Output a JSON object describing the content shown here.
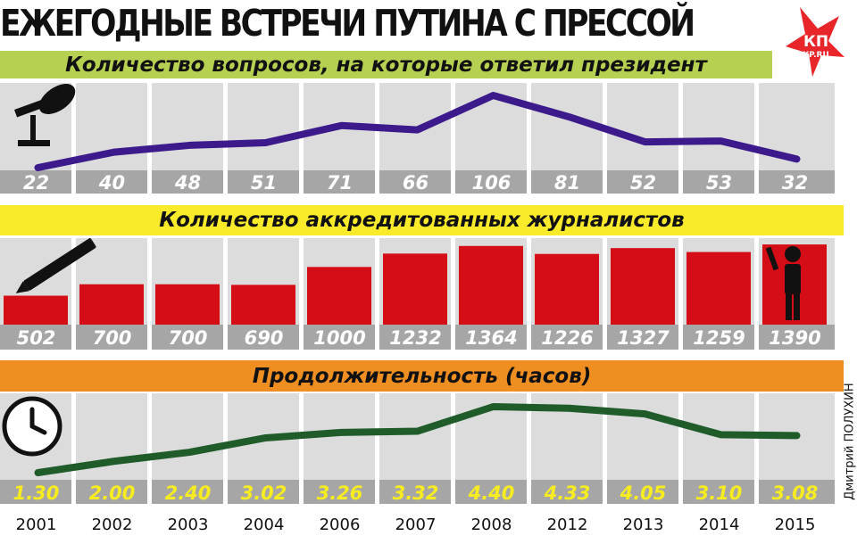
{
  "title": "ЕЖЕГОДНЫЕ ВСТРЕЧИ ПУТИНА С ПРЕССОЙ",
  "logo": {
    "main": "КП",
    "sub": "KP.RU",
    "color": "#e8262a"
  },
  "credit": "Дмитрий ПОЛУХИН",
  "colors": {
    "questions_line": "#3d1a8c",
    "journalists_bar": "#d50d16",
    "duration_line": "#1f5c2a",
    "label_band": "#a6a6a6",
    "column_fill": "#dcdcdc"
  },
  "chart_data": [
    {
      "type": "line",
      "title": "Количество вопросов, на которые ответил президент",
      "categories": [
        "2001",
        "2002",
        "2003",
        "2004",
        "2006",
        "2007",
        "2008",
        "2012",
        "2013",
        "2014",
        "2015"
      ],
      "values": [
        22,
        40,
        48,
        51,
        71,
        66,
        106,
        81,
        52,
        53,
        32
      ],
      "labels": [
        "22",
        "40",
        "48",
        "51",
        "71",
        "66",
        "106",
        "81",
        "52",
        "53",
        "32"
      ],
      "icon": "microphone-icon"
    },
    {
      "type": "bar",
      "title": "Количество аккредитованных журналистов",
      "categories": [
        "2001",
        "2002",
        "2003",
        "2004",
        "2006",
        "2007",
        "2008",
        "2012",
        "2013",
        "2014",
        "2015"
      ],
      "values": [
        502,
        700,
        700,
        690,
        1000,
        1232,
        1364,
        1226,
        1327,
        1259,
        1390
      ],
      "labels": [
        "502",
        "700",
        "700",
        "690",
        "1000",
        "1232",
        "1364",
        "1226",
        "1327",
        "1259",
        "1390"
      ],
      "icons": [
        "pen-icon",
        "raised-hand-person-icon"
      ]
    },
    {
      "type": "line",
      "title": "Продолжительность (часов)",
      "categories": [
        "2001",
        "2002",
        "2003",
        "2004",
        "2006",
        "2007",
        "2008",
        "2012",
        "2013",
        "2014",
        "2015"
      ],
      "values": [
        1.5,
        2.0,
        2.4,
        3.03,
        3.27,
        3.32,
        4.4,
        4.33,
        4.08,
        3.17,
        3.13
      ],
      "labels": [
        "1.30",
        "2.00",
        "2.40",
        "3.02",
        "3.26",
        "3.32",
        "4.40",
        "4.33",
        "4.05",
        "3.10",
        "3.08"
      ],
      "icon": "clock-icon"
    }
  ]
}
